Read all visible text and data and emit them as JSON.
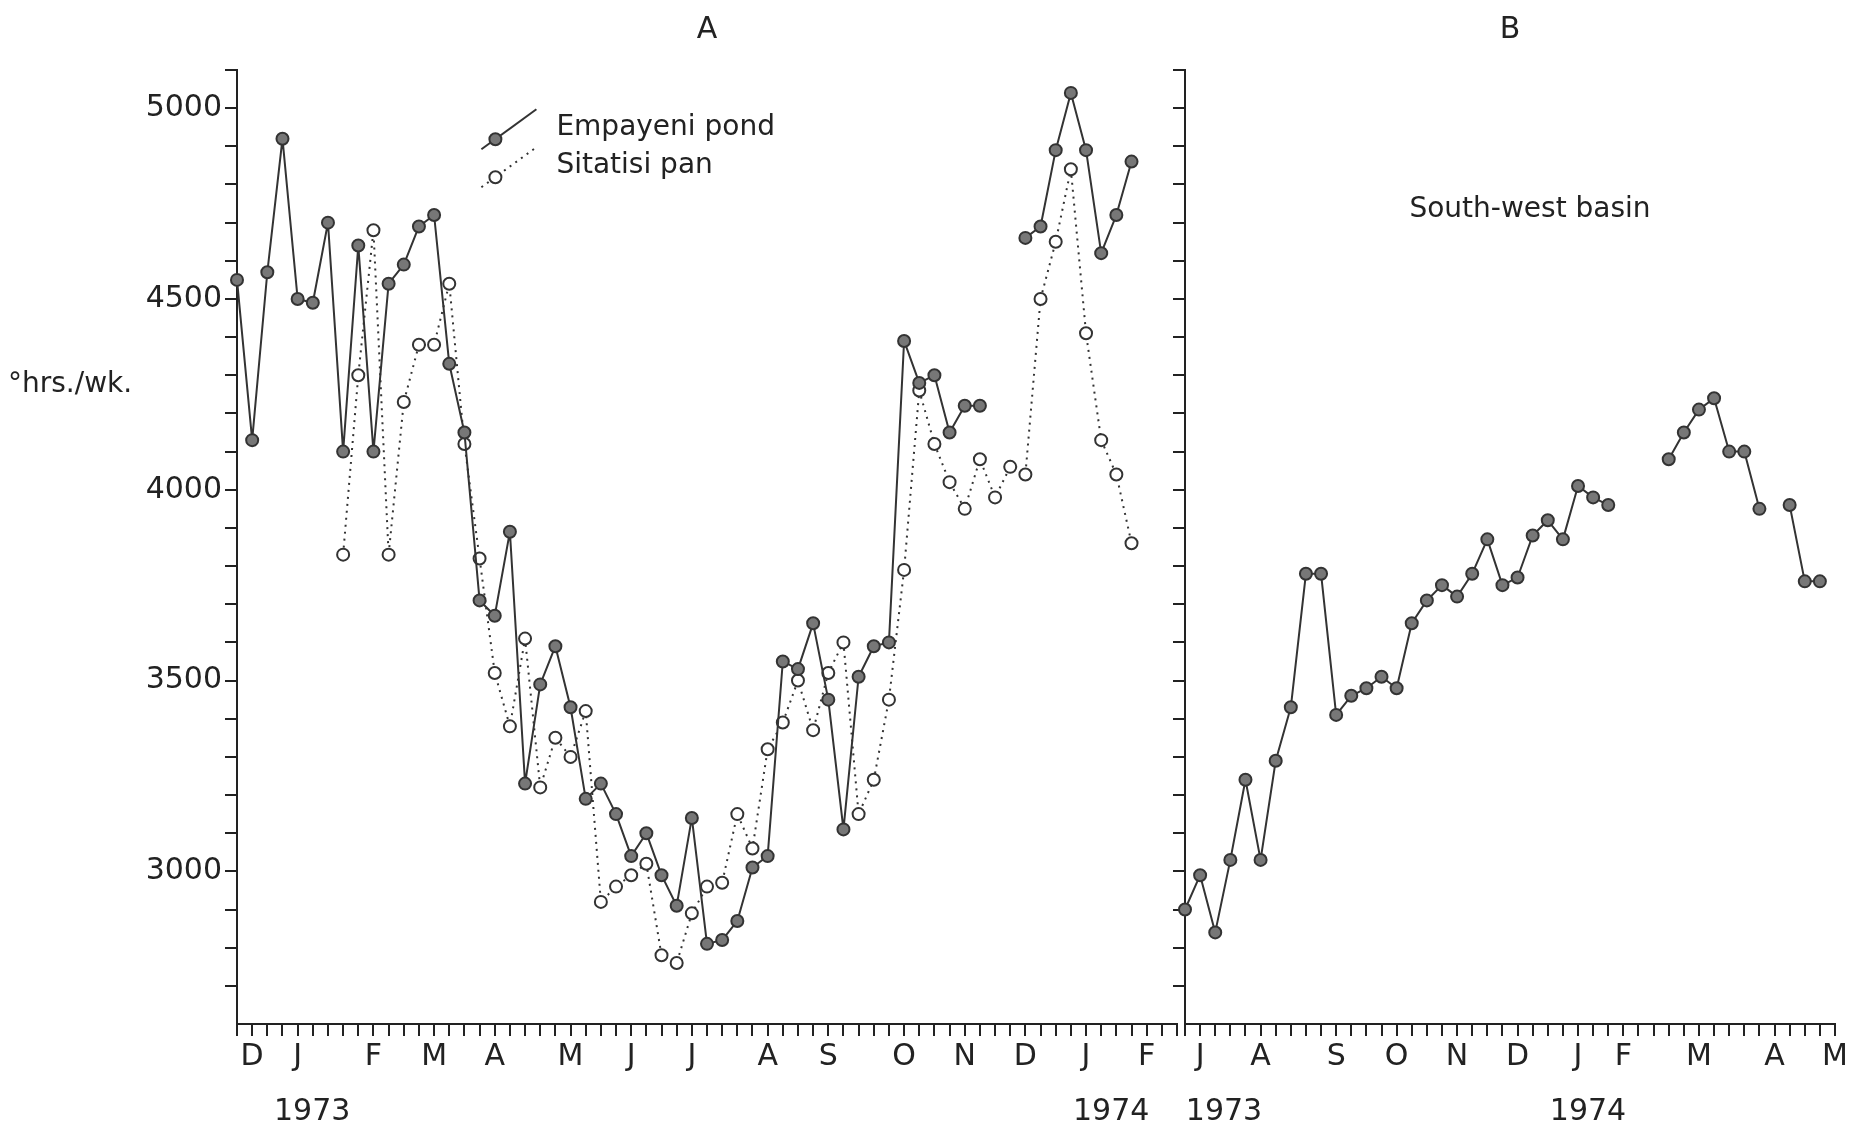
{
  "chart_data": [
    {
      "type": "line",
      "title": "A",
      "ylabel": "°hrs./wk.",
      "legend": "top",
      "grid": false,
      "marker": "circle",
      "categories": [
        null,
        "D",
        null,
        null,
        "J",
        null,
        null,
        null,
        null,
        "F",
        null,
        null,
        null,
        "M",
        null,
        null,
        null,
        "A",
        null,
        null,
        null,
        null,
        "M",
        null,
        null,
        null,
        "J",
        null,
        null,
        null,
        "J",
        null,
        null,
        null,
        null,
        "A",
        null,
        null,
        null,
        "S",
        null,
        null,
        null,
        null,
        "O",
        null,
        null,
        null,
        "N",
        null,
        null,
        null,
        "D",
        null,
        null,
        null,
        "J",
        null,
        null,
        null,
        "F",
        null,
        null
      ],
      "series": [
        {
          "name": "Empayeni pond",
          "color": "#333333",
          "line_style": "solid",
          "values": [
            4550,
            4130,
            4570,
            4920,
            4500,
            4490,
            4700,
            4100,
            4640,
            4100,
            4540,
            4590,
            4690,
            4720,
            4330,
            4150,
            3710,
            3670,
            3890,
            3230,
            3490,
            3590,
            3430,
            3190,
            3230,
            3150,
            3040,
            3100,
            2990,
            2910,
            3140,
            2810,
            2820,
            2870,
            3010,
            3040,
            3550,
            3530,
            3650,
            3450,
            3110,
            3510,
            3590,
            3600,
            4390,
            4280,
            4300,
            4150,
            4220,
            4220,
            null,
            null,
            4660,
            4690,
            4890,
            5040,
            4890,
            4620,
            4720,
            4860,
            null,
            null,
            null
          ]
        },
        {
          "name": "Sitatisi pan",
          "color": "#333333",
          "line_style": "dotted",
          "values": [
            null,
            null,
            null,
            null,
            null,
            null,
            null,
            3830,
            4300,
            4680,
            3830,
            4230,
            4380,
            4380,
            4540,
            4120,
            3820,
            3520,
            3380,
            3610,
            3220,
            3350,
            3300,
            3420,
            2920,
            2960,
            2990,
            3020,
            2780,
            2760,
            2890,
            2960,
            2970,
            3150,
            3060,
            3320,
            3390,
            3500,
            3370,
            3520,
            3600,
            3150,
            3240,
            3450,
            3790,
            4260,
            4120,
            4020,
            3950,
            4080,
            3980,
            4060,
            4040,
            4500,
            4650,
            4840,
            4410,
            4130,
            4040,
            3860,
            null,
            null,
            null
          ]
        }
      ],
      "ylim": [
        2600,
        5100
      ],
      "yticks": [
        {
          "value": 2700,
          "label": null
        },
        {
          "value": 2800,
          "label": null
        },
        {
          "value": 2900,
          "label": null
        },
        3000,
        {
          "value": 3100,
          "label": null
        },
        {
          "value": 3200,
          "label": null
        },
        {
          "value": 3300,
          "label": null
        },
        {
          "value": 3400,
          "label": null
        },
        3500,
        {
          "value": 3600,
          "label": null
        },
        {
          "value": 3700,
          "label": null
        },
        {
          "value": 3800,
          "label": null
        },
        {
          "value": 3900,
          "label": null
        },
        4000,
        {
          "value": 4100,
          "label": null
        },
        {
          "value": 4200,
          "label": null
        },
        {
          "value": 4300,
          "label": null
        },
        {
          "value": 4400,
          "label": null
        },
        4500,
        {
          "value": 4600,
          "label": null
        },
        {
          "value": 4700,
          "label": null
        },
        {
          "value": 4800,
          "label": null
        },
        {
          "value": 4900,
          "label": null
        },
        5000,
        {
          "value": 5100,
          "label": null
        }
      ],
      "annotations": [
        "1973",
        "1974"
      ]
    },
    {
      "type": "line",
      "title": "B",
      "subtitle": "South-west basin",
      "grid": false,
      "marker": "circle",
      "tick_labels": "x",
      "categories": [
        null,
        "J",
        null,
        null,
        null,
        "A",
        null,
        null,
        null,
        null,
        "S",
        null,
        null,
        null,
        "O",
        null,
        null,
        null,
        "N",
        null,
        null,
        null,
        "D",
        null,
        null,
        null,
        "J",
        null,
        null,
        "F",
        null,
        null,
        null,
        null,
        "M",
        null,
        null,
        null,
        null,
        "A",
        null,
        null,
        null,
        "M"
      ],
      "series": [
        {
          "color": "#333333",
          "line_style": "solid",
          "values": [
            2900,
            2990,
            2840,
            3030,
            3240,
            3030,
            3290,
            3430,
            3780,
            3780,
            3410,
            3460,
            3480,
            3510,
            3480,
            3650,
            3710,
            3750,
            3720,
            3780,
            3870,
            3750,
            3770,
            3880,
            3920,
            3870,
            4010,
            3980,
            3960,
            null,
            null,
            null,
            4080,
            4150,
            4210,
            4240,
            4100,
            4100,
            3950,
            null,
            3960,
            3760,
            3760,
            null
          ]
        }
      ],
      "ylim": [
        2600,
        5100
      ],
      "yticks": [
        {
          "value": 2700,
          "label": null
        },
        {
          "value": 2800,
          "label": null
        },
        {
          "value": 2900,
          "label": null
        },
        3000,
        {
          "value": 3100,
          "label": null
        },
        {
          "value": 3200,
          "label": null
        },
        {
          "value": 3300,
          "label": null
        },
        {
          "value": 3400,
          "label": null
        },
        3500,
        {
          "value": 3600,
          "label": null
        },
        {
          "value": 3700,
          "label": null
        },
        {
          "value": 3800,
          "label": null
        },
        {
          "value": 3900,
          "label": null
        },
        4000,
        {
          "value": 4100,
          "label": null
        },
        {
          "value": 4200,
          "label": null
        },
        {
          "value": 4300,
          "label": null
        },
        {
          "value": 4400,
          "label": null
        },
        4500,
        {
          "value": 4600,
          "label": null
        },
        {
          "value": 4700,
          "label": null
        },
        {
          "value": 4800,
          "label": null
        },
        {
          "value": 4900,
          "label": null
        },
        5000,
        {
          "value": 5100,
          "label": null
        }
      ],
      "annotations": [
        "1973",
        "1974"
      ]
    }
  ]
}
